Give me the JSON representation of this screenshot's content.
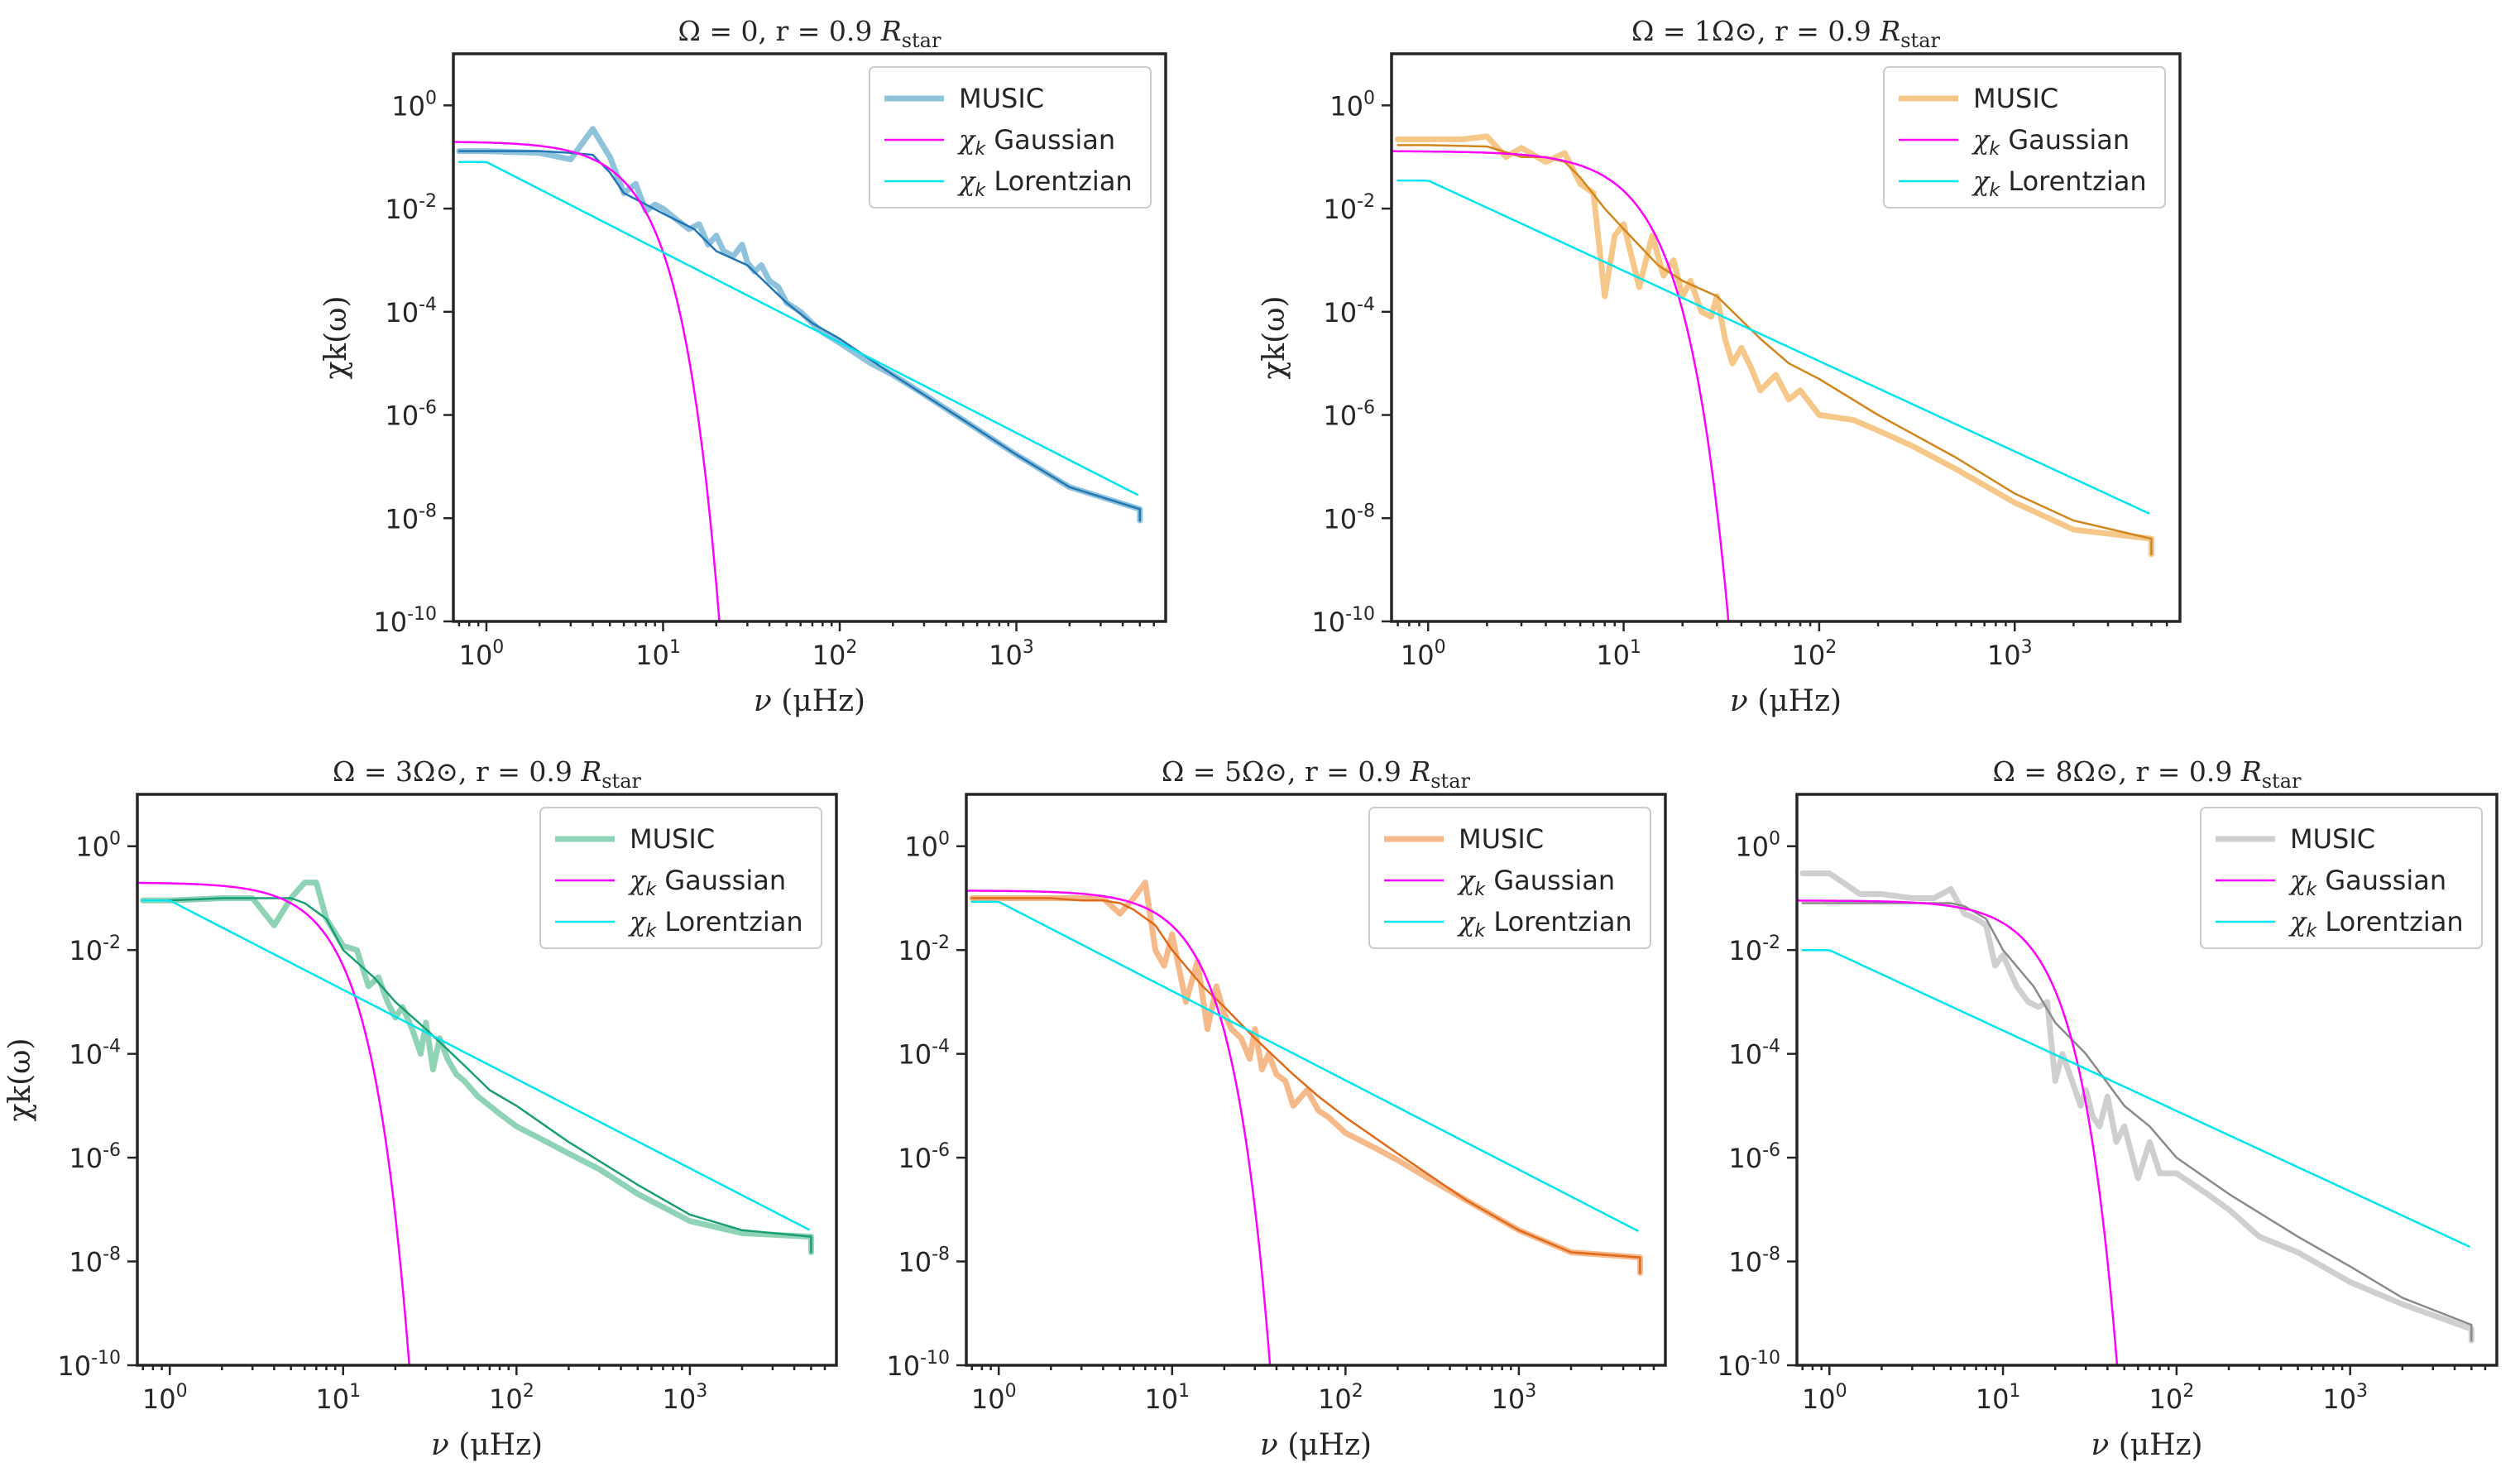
{
  "chart_data": [
    {
      "type": "line",
      "title": "Ω = 0, r = 0.9 R_star",
      "title_plain": "Ω = 0, r = 0.9 ",
      "title_italic": "R",
      "title_sub": "star",
      "xlabel_italic": "ν",
      "xlabel_rest": " (μHz)",
      "ylabel": "χk(ω)",
      "x_scale": "log",
      "y_scale": "log",
      "xlim": [
        0.65,
        7000
      ],
      "ylim": [
        1e-10,
        10
      ],
      "x_ticks": [
        1,
        10,
        100,
        1000
      ],
      "y_ticks": [
        1e-10,
        1e-08,
        1e-06,
        0.0001,
        0.01,
        1
      ],
      "legend_position": "top-right",
      "colors": {
        "music_light": "#8fc3dc",
        "music_dark": "#2276b4",
        "gaussian": "#ff00ff",
        "lorentzian": "#00e5ee"
      },
      "series": [
        {
          "name": "MUSIC",
          "role": "music_raw",
          "x": [
            0.7,
            1,
            2,
            3,
            4,
            5,
            6,
            7,
            8,
            9,
            10,
            12,
            14,
            16,
            18,
            20,
            22,
            25,
            28,
            30,
            33,
            36,
            40,
            45,
            50,
            60,
            70,
            80,
            100,
            150,
            200,
            300,
            500,
            1000,
            2000,
            5000,
            5000
          ],
          "y": [
            0.13,
            0.13,
            0.12,
            0.09,
            0.35,
            0.1,
            0.02,
            0.03,
            0.009,
            0.012,
            0.01,
            0.006,
            0.004,
            0.005,
            0.002,
            0.003,
            0.0015,
            0.0012,
            0.002,
            0.0009,
            0.0006,
            0.0008,
            0.0004,
            0.0003,
            0.00015,
            0.0001,
            6e-05,
            4e-05,
            2.5e-05,
            1e-05,
            6e-06,
            2.5e-06,
            8e-07,
            1.7e-07,
            4e-08,
            1.5e-08,
            9e-09
          ]
        },
        {
          "name": "",
          "role": "music_smooth",
          "x": [
            0.7,
            1,
            2,
            3,
            4,
            5,
            6,
            8,
            10,
            15,
            20,
            30,
            50,
            70,
            100,
            200,
            500,
            1000,
            2000,
            5000,
            5000
          ],
          "y": [
            0.13,
            0.13,
            0.13,
            0.12,
            0.11,
            0.05,
            0.02,
            0.012,
            0.008,
            0.004,
            0.0015,
            0.0008,
            0.00015,
            6e-05,
            3e-05,
            6e-06,
            8e-07,
            1.7e-07,
            4e-08,
            1.5e-08,
            9e-09
          ]
        },
        {
          "name": "χk Gaussian",
          "legend_italic": "χ",
          "legend_sub": "k",
          "legend_rest": " Gaussian",
          "role": "gaussian",
          "amp": 0.2,
          "width": 4.5
        },
        {
          "name": "χk Lorentzian",
          "legend_italic": "χ",
          "legend_sub": "k",
          "legend_rest": " Lorentzian",
          "role": "lorentzian",
          "amp": 0.08,
          "x0": 1.0,
          "slope": -1.75
        }
      ]
    },
    {
      "type": "line",
      "title": "Ω = 1Ω⊙, r = 0.9 R_star",
      "title_plain": "Ω = 1Ω⊙, r = 0.9 ",
      "title_italic": "R",
      "title_sub": "star",
      "xlabel_italic": "ν",
      "xlabel_rest": " (μHz)",
      "ylabel": "χk(ω)",
      "x_scale": "log",
      "y_scale": "log",
      "xlim": [
        0.65,
        7000
      ],
      "ylim": [
        1e-10,
        10
      ],
      "x_ticks": [
        1,
        10,
        100,
        1000
      ],
      "y_ticks": [
        1e-10,
        1e-08,
        1e-06,
        0.0001,
        0.01,
        1
      ],
      "legend_position": "top-right",
      "colors": {
        "music_light": "#f5c88a",
        "music_dark": "#d2861e",
        "gaussian": "#ff00ff",
        "lorentzian": "#00e5ee"
      },
      "series": [
        {
          "name": "MUSIC",
          "role": "music_raw",
          "x": [
            0.7,
            1,
            1.5,
            2,
            2.5,
            3,
            4,
            5,
            6,
            7,
            8,
            9,
            10,
            12,
            14,
            16,
            18,
            20,
            22,
            25,
            28,
            30,
            33,
            36,
            40,
            45,
            50,
            60,
            70,
            80,
            100,
            150,
            200,
            300,
            500,
            1000,
            2000,
            5000,
            5000
          ],
          "y": [
            0.22,
            0.22,
            0.22,
            0.25,
            0.1,
            0.15,
            0.08,
            0.12,
            0.03,
            0.02,
            0.0002,
            0.003,
            0.005,
            0.0003,
            0.003,
            0.0005,
            0.001,
            0.0002,
            0.0004,
            0.0001,
            8e-05,
            0.0002,
            3e-05,
            1e-05,
            2e-05,
            8e-06,
            3e-06,
            6e-06,
            2e-06,
            3e-06,
            1e-06,
            8e-07,
            5e-07,
            2.5e-07,
            9e-08,
            2e-08,
            6e-09,
            4e-09,
            2e-09
          ]
        },
        {
          "name": "",
          "role": "music_smooth",
          "x": [
            0.7,
            1,
            2,
            3,
            4,
            5,
            6,
            8,
            10,
            15,
            20,
            30,
            50,
            70,
            100,
            200,
            500,
            1000,
            2000,
            5000,
            5000
          ],
          "y": [
            0.17,
            0.17,
            0.16,
            0.1,
            0.1,
            0.08,
            0.04,
            0.01,
            0.004,
            0.0008,
            0.0004,
            0.0002,
            3e-05,
            1e-05,
            5e-06,
            1e-06,
            1.5e-07,
            3e-08,
            9e-09,
            4e-09,
            2e-09
          ]
        },
        {
          "name": "χk Gaussian",
          "legend_italic": "χ",
          "legend_sub": "k",
          "legend_rest": " Gaussian",
          "role": "gaussian",
          "amp": 0.13,
          "width": 7.5
        },
        {
          "name": "χk Lorentzian",
          "legend_italic": "χ",
          "legend_sub": "k",
          "legend_rest": " Lorentzian",
          "role": "lorentzian",
          "amp": 0.035,
          "x0": 1.0,
          "slope": -1.75
        }
      ]
    },
    {
      "type": "line",
      "title": "Ω = 3Ω⊙, r = 0.9 R_star",
      "title_plain": "Ω = 3Ω⊙, r = 0.9 ",
      "title_italic": "R",
      "title_sub": "star",
      "xlabel_italic": "ν",
      "xlabel_rest": " (μHz)",
      "ylabel": "χk(ω)",
      "x_scale": "log",
      "y_scale": "log",
      "xlim": [
        0.65,
        7000
      ],
      "ylim": [
        1e-10,
        10
      ],
      "x_ticks": [
        1,
        10,
        100,
        1000
      ],
      "y_ticks": [
        1e-10,
        1e-08,
        1e-06,
        0.0001,
        0.01,
        1
      ],
      "legend_position": "top-right",
      "colors": {
        "music_light": "#8fd3b6",
        "music_dark": "#1a9e73",
        "gaussian": "#ff00ff",
        "lorentzian": "#00e5ee"
      },
      "series": [
        {
          "name": "MUSIC",
          "role": "music_raw",
          "x": [
            0.7,
            1,
            2,
            3,
            4,
            5,
            6,
            7,
            8,
            10,
            12,
            14,
            16,
            18,
            20,
            22,
            25,
            28,
            30,
            33,
            36,
            40,
            45,
            50,
            60,
            70,
            80,
            100,
            150,
            200,
            300,
            500,
            1000,
            2000,
            5000,
            5000
          ],
          "y": [
            0.09,
            0.09,
            0.1,
            0.1,
            0.03,
            0.1,
            0.2,
            0.2,
            0.04,
            0.012,
            0.01,
            0.002,
            0.003,
            0.001,
            0.0005,
            0.0008,
            0.0003,
            0.0001,
            0.0004,
            5e-05,
            0.0002,
            8e-05,
            4e-05,
            3e-05,
            1.5e-05,
            1e-05,
            7e-06,
            4e-06,
            2e-06,
            1.2e-06,
            6e-07,
            2e-07,
            6e-08,
            3.5e-08,
            3e-08,
            1.5e-08
          ]
        },
        {
          "name": "",
          "role": "music_smooth",
          "x": [
            0.7,
            1,
            2,
            3,
            4,
            5,
            6,
            8,
            10,
            15,
            20,
            30,
            50,
            70,
            100,
            200,
            500,
            1000,
            2000,
            5000,
            5000
          ],
          "y": [
            0.09,
            0.09,
            0.1,
            0.1,
            0.1,
            0.1,
            0.08,
            0.04,
            0.01,
            0.003,
            0.001,
            0.0003,
            6e-05,
            2e-05,
            1e-05,
            2e-06,
            3e-07,
            8e-08,
            4e-08,
            3e-08,
            1.5e-08
          ]
        },
        {
          "name": "χk Gaussian",
          "legend_italic": "χ",
          "legend_sub": "k",
          "legend_rest": " Gaussian",
          "role": "gaussian",
          "amp": 0.2,
          "width": 5.2
        },
        {
          "name": "χk Lorentzian",
          "legend_italic": "χ",
          "legend_sub": "k",
          "legend_rest": " Lorentzian",
          "role": "lorentzian",
          "amp": 0.09,
          "x0": 1.0,
          "slope": -1.72
        }
      ]
    },
    {
      "type": "line",
      "title": "Ω = 5Ω⊙, r = 0.9 R_star",
      "title_plain": "Ω = 5Ω⊙, r = 0.9 ",
      "title_italic": "R",
      "title_sub": "star",
      "xlabel_italic": "ν",
      "xlabel_rest": " (μHz)",
      "ylabel": "",
      "x_scale": "log",
      "y_scale": "log",
      "xlim": [
        0.65,
        7000
      ],
      "ylim": [
        1e-10,
        10
      ],
      "x_ticks": [
        1,
        10,
        100,
        1000
      ],
      "y_ticks": [
        1e-10,
        1e-08,
        1e-06,
        0.0001,
        0.01,
        1
      ],
      "legend_position": "top-right",
      "colors": {
        "music_light": "#f5b98a",
        "music_dark": "#e06a1a",
        "gaussian": "#ff00ff",
        "lorentzian": "#00e5ee"
      },
      "series": [
        {
          "name": "MUSIC",
          "role": "music_raw",
          "x": [
            0.7,
            1,
            2,
            3,
            4,
            5,
            6,
            7,
            8,
            9,
            10,
            12,
            14,
            16,
            18,
            20,
            22,
            25,
            28,
            30,
            33,
            36,
            40,
            45,
            50,
            60,
            70,
            80,
            100,
            150,
            200,
            300,
            500,
            1000,
            2000,
            5000,
            5000
          ],
          "y": [
            0.1,
            0.1,
            0.1,
            0.1,
            0.1,
            0.05,
            0.1,
            0.2,
            0.01,
            0.005,
            0.02,
            0.001,
            0.006,
            0.0003,
            0.002,
            0.0006,
            0.0003,
            0.0002,
            8e-05,
            0.0003,
            5e-05,
            0.0001,
            4e-05,
            3e-05,
            1e-05,
            2e-05,
            8e-06,
            6e-06,
            3e-06,
            1.5e-06,
            9e-07,
            4e-07,
            1.5e-07,
            4e-08,
            1.5e-08,
            1.2e-08,
            6e-09
          ]
        },
        {
          "name": "",
          "role": "music_smooth",
          "x": [
            0.7,
            1,
            2,
            3,
            4,
            5,
            6,
            8,
            10,
            15,
            20,
            30,
            50,
            70,
            100,
            200,
            500,
            1000,
            2000,
            5000,
            5000
          ],
          "y": [
            0.1,
            0.1,
            0.1,
            0.09,
            0.09,
            0.08,
            0.06,
            0.03,
            0.01,
            0.002,
            0.0008,
            0.0002,
            4e-05,
            1.5e-05,
            6e-06,
            1.2e-06,
            1.5e-07,
            4e-08,
            1.5e-08,
            1.2e-08,
            6e-09
          ]
        },
        {
          "name": "χk Gaussian",
          "legend_italic": "χ",
          "legend_sub": "k",
          "legend_rest": " Gaussian",
          "role": "gaussian",
          "amp": 0.14,
          "width": 8.0
        },
        {
          "name": "χk Lorentzian",
          "legend_italic": "χ",
          "legend_sub": "k",
          "legend_rest": " Lorentzian",
          "role": "lorentzian",
          "amp": 0.085,
          "x0": 1.0,
          "slope": -1.72
        }
      ]
    },
    {
      "type": "line",
      "title": "Ω = 8Ω⊙, r = 0.9 R_star",
      "title_plain": "Ω = 8Ω⊙, r = 0.9 ",
      "title_italic": "R",
      "title_sub": "star",
      "xlabel_italic": "ν",
      "xlabel_rest": " (μHz)",
      "ylabel": "",
      "x_scale": "log",
      "y_scale": "log",
      "xlim": [
        0.65,
        7000
      ],
      "ylim": [
        1e-10,
        10
      ],
      "x_ticks": [
        1,
        10,
        100,
        1000
      ],
      "y_ticks": [
        1e-10,
        1e-08,
        1e-06,
        0.0001,
        0.01,
        1
      ],
      "legend_position": "top-right",
      "colors": {
        "music_light": "#cfcfcf",
        "music_dark": "#8a8a8a",
        "gaussian": "#ff00ff",
        "lorentzian": "#00e5ee"
      },
      "series": [
        {
          "name": "MUSIC",
          "role": "music_raw",
          "x": [
            0.7,
            1,
            1.5,
            2,
            3,
            4,
            5,
            6,
            7,
            8,
            9,
            10,
            12,
            14,
            16,
            18,
            20,
            22,
            25,
            28,
            30,
            33,
            36,
            40,
            45,
            50,
            60,
            70,
            80,
            100,
            150,
            200,
            300,
            500,
            1000,
            2000,
            5000,
            5000
          ],
          "y": [
            0.3,
            0.3,
            0.12,
            0.12,
            0.1,
            0.1,
            0.15,
            0.05,
            0.04,
            0.03,
            0.005,
            0.008,
            0.002,
            0.001,
            0.0008,
            0.001,
            3e-05,
            0.0001,
            3e-05,
            1e-05,
            2e-05,
            6e-06,
            4e-06,
            1.5e-05,
            2e-06,
            4e-06,
            4e-07,
            2e-06,
            5e-07,
            5e-07,
            2e-07,
            1e-07,
            3e-08,
            1.5e-08,
            4e-09,
            1.5e-09,
            5e-10,
            3e-10
          ]
        },
        {
          "name": "",
          "role": "music_smooth",
          "x": [
            0.7,
            1,
            2,
            3,
            4,
            5,
            6,
            8,
            10,
            15,
            20,
            30,
            50,
            70,
            100,
            200,
            500,
            1000,
            2000,
            5000,
            5000
          ],
          "y": [
            0.08,
            0.08,
            0.08,
            0.08,
            0.08,
            0.08,
            0.07,
            0.04,
            0.01,
            0.002,
            0.0004,
            0.0001,
            1e-05,
            4e-06,
            1e-06,
            2e-07,
            3e-08,
            8e-09,
            2e-09,
            6e-10,
            3e-10
          ]
        },
        {
          "name": "χk Gaussian",
          "legend_italic": "χ",
          "legend_sub": "k",
          "legend_rest": " Gaussian",
          "role": "gaussian",
          "amp": 0.09,
          "width": 10.0
        },
        {
          "name": "χk Lorentzian",
          "legend_italic": "χ",
          "legend_sub": "k",
          "legend_rest": " Lorentzian",
          "role": "lorentzian",
          "amp": 0.01,
          "x0": 1.0,
          "slope": -1.55
        }
      ]
    }
  ]
}
